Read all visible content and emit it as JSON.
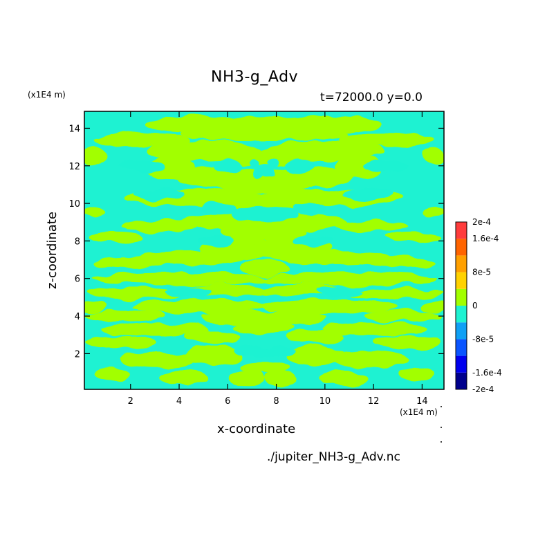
{
  "chart_data": {
    "type": "heatmap",
    "title": "NH3-g_Adv",
    "subtitle": "t=72000.0 y=0.0",
    "xlabel": "x-coordinate",
    "ylabel": "z-coordinate",
    "x_unit": "(x1E4 m)",
    "z_unit": "(x1E4 m)",
    "xlim": [
      0.1,
      14.9
    ],
    "ylim": [
      0.1,
      14.9
    ],
    "x_ticks": [
      "2",
      "4",
      "6",
      "8",
      "10",
      "12",
      "14"
    ],
    "y_ticks": [
      "2",
      "4",
      "6",
      "8",
      "10",
      "12",
      "14"
    ],
    "colorbar": {
      "levels": [
        -0.0002,
        -0.00016,
        -0.00012,
        -8e-05,
        -4e-05,
        0,
        4e-05,
        8e-05,
        0.00012,
        0.00016,
        0.0002
      ],
      "colors": [
        "#00008c",
        "#0000ee",
        "#0a55ff",
        "#0fa0f5",
        "#1ef2d2",
        "#a2ff00",
        "#ffd200",
        "#ffa000",
        "#ff6400",
        "#ff3c3c"
      ],
      "tick_labels": [
        "2e-4",
        "1.6e-4",
        "8e-5",
        "0",
        "-8e-5",
        "-1.6e-4",
        "-2e-4"
      ]
    },
    "field_colors": {
      "negative": "#1ef2d2",
      "positive": "#a2ff00"
    },
    "blobs_positive": [
      [
        4.8,
        14.2,
        2.2,
        0.45
      ],
      [
        8.0,
        14.3,
        1.2,
        0.35
      ],
      [
        7.0,
        13.7,
        3.0,
        0.35
      ],
      [
        2.5,
        13.4,
        2.0,
        0.35
      ],
      [
        5.0,
        12.8,
        2.4,
        0.55
      ],
      [
        7.4,
        12.4,
        1.6,
        0.45
      ],
      [
        3.6,
        11.9,
        1.0,
        0.6
      ],
      [
        5.6,
        11.4,
        1.8,
        0.55
      ],
      [
        7.5,
        11.0,
        2.0,
        0.45
      ],
      [
        4.8,
        10.3,
        3.0,
        0.45
      ],
      [
        7.0,
        10.0,
        1.5,
        0.4
      ],
      [
        6.3,
        9.0,
        2.2,
        0.45
      ],
      [
        7.5,
        8.5,
        1.8,
        0.45
      ],
      [
        3.2,
        8.8,
        1.6,
        0.3
      ],
      [
        1.4,
        8.2,
        1.1,
        0.3
      ],
      [
        6.4,
        7.6,
        1.6,
        0.6
      ],
      [
        7.5,
        6.6,
        1.0,
        0.45
      ],
      [
        4.5,
        7.1,
        2.2,
        0.35
      ],
      [
        2.0,
        6.9,
        1.6,
        0.3
      ],
      [
        4.0,
        6.0,
        3.6,
        0.35
      ],
      [
        6.0,
        5.4,
        1.8,
        0.3
      ],
      [
        2.2,
        5.2,
        2.0,
        0.3
      ],
      [
        4.8,
        4.5,
        2.8,
        0.4
      ],
      [
        1.8,
        4.0,
        1.6,
        0.3
      ],
      [
        6.5,
        3.9,
        1.6,
        0.35
      ],
      [
        3.0,
        3.3,
        2.2,
        0.35
      ],
      [
        5.4,
        2.9,
        1.2,
        0.35
      ],
      [
        7.5,
        3.4,
        1.2,
        0.35
      ],
      [
        1.6,
        2.6,
        1.4,
        0.35
      ],
      [
        3.2,
        1.7,
        1.6,
        0.45
      ],
      [
        5.4,
        1.9,
        1.2,
        0.55
      ],
      [
        7.5,
        1.3,
        1.0,
        0.3
      ],
      [
        6.8,
        0.7,
        0.7,
        0.45
      ],
      [
        4.2,
        0.7,
        1.0,
        0.4
      ],
      [
        1.2,
        0.9,
        0.7,
        0.35
      ],
      [
        0.5,
        12.5,
        0.5,
        0.5
      ],
      [
        0.5,
        9.5,
        0.5,
        0.3
      ],
      [
        0.5,
        4.5,
        0.5,
        0.3
      ]
    ],
    "blobs_negative": [
      [
        7.5,
        9.4,
        1.4,
        0.45
      ],
      [
        5.6,
        9.7,
        0.7,
        0.35
      ],
      [
        3.2,
        10.5,
        1.0,
        0.3
      ],
      [
        6.0,
        12.0,
        0.6,
        0.35
      ],
      [
        7.1,
        12.1,
        0.25,
        0.25
      ],
      [
        7.7,
        11.6,
        0.3,
        0.3
      ],
      [
        2.5,
        12.0,
        0.9,
        0.3
      ],
      [
        5.5,
        8.0,
        0.8,
        0.3
      ],
      [
        4.4,
        5.3,
        0.9,
        0.25
      ],
      [
        6.8,
        2.2,
        0.6,
        0.25
      ],
      [
        7.5,
        2.1,
        0.6,
        0.2
      ]
    ]
  },
  "source": "./jupiter_NH3-g_Adv.nc"
}
